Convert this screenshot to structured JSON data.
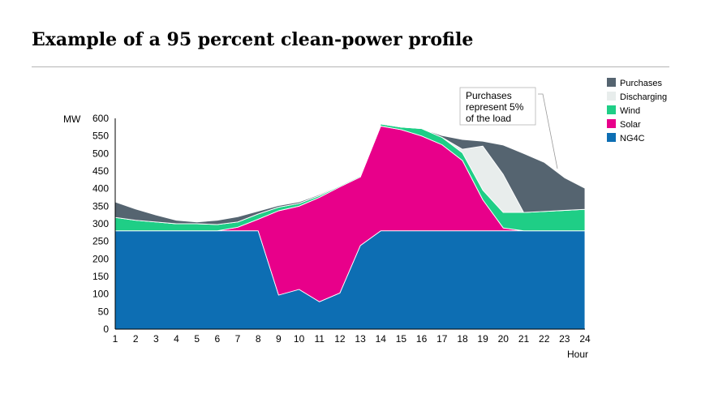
{
  "title": "Example of a 95 percent clean-power profile",
  "chart_data": {
    "type": "area",
    "stacked": true,
    "ylabel": "MW",
    "xlabel": "Hour",
    "ylim": [
      0,
      600
    ],
    "yticks": [
      0,
      50,
      100,
      150,
      200,
      250,
      300,
      350,
      400,
      450,
      500,
      550,
      600
    ],
    "x": [
      1,
      2,
      3,
      4,
      5,
      6,
      7,
      8,
      9,
      10,
      11,
      12,
      13,
      14,
      15,
      16,
      17,
      18,
      19,
      20,
      21,
      22,
      23,
      24
    ],
    "grid": false,
    "legend_position": "top-right",
    "series": [
      {
        "name": "NG4C",
        "color": "#0d6eb3",
        "values": [
          280,
          280,
          280,
          280,
          280,
          280,
          280,
          280,
          97,
          113,
          78,
          103,
          238,
          280,
          280,
          280,
          280,
          280,
          280,
          280,
          280,
          280,
          280,
          280
        ]
      },
      {
        "name": "Solar",
        "color": "#e8008a",
        "values": [
          0,
          0,
          0,
          0,
          0,
          0,
          10,
          33,
          240,
          237,
          297,
          302,
          195,
          298,
          288,
          270,
          245,
          200,
          88,
          8,
          0,
          0,
          0,
          0
        ]
      },
      {
        "name": "Wind",
        "color": "#1fce86",
        "values": [
          38,
          30,
          25,
          20,
          20,
          18,
          15,
          15,
          10,
          8,
          5,
          3,
          3,
          6,
          7,
          21,
          21,
          22,
          28,
          44,
          52,
          55,
          58,
          61
        ]
      },
      {
        "name": "Discharging",
        "color": "#e8edec",
        "values": [
          0,
          0,
          0,
          0,
          0,
          0,
          0,
          0,
          0,
          0,
          0,
          0,
          0,
          0,
          0,
          0,
          0,
          10,
          125,
          108,
          0,
          0,
          0,
          0
        ]
      },
      {
        "name": "Purchases",
        "color": "#556470",
        "values": [
          44,
          32,
          20,
          10,
          5,
          12,
          15,
          8,
          5,
          4,
          3,
          2,
          2,
          0,
          0,
          0,
          5,
          28,
          14,
          84,
          168,
          140,
          93,
          60
        ]
      }
    ],
    "legend": [
      "Purchases",
      "Discharging",
      "Wind",
      "Solar",
      "NG4C"
    ],
    "annotations": [
      "Purchases represent 5% of the load"
    ]
  },
  "callout": {
    "lines": [
      "Purchases",
      "represent 5%",
      "of the load"
    ]
  }
}
